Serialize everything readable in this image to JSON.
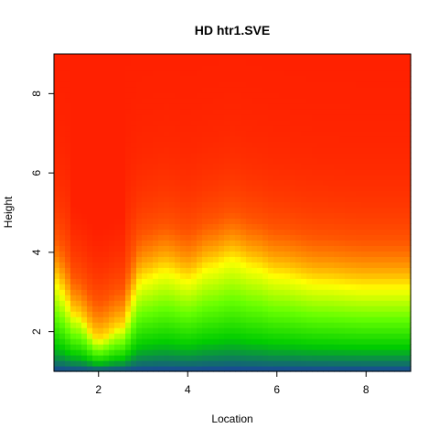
{
  "chart_data": {
    "type": "heatmap",
    "title": "HD htr1.SVE",
    "xlabel": "Location",
    "ylabel": "Height",
    "xlim": [
      1,
      9
    ],
    "ylim": [
      1,
      9
    ],
    "x_ticks": [
      2,
      4,
      6,
      8
    ],
    "y_ticks": [
      2,
      4,
      6,
      8
    ],
    "x_tick_labels": [
      "2",
      "4",
      "6",
      "8"
    ],
    "y_tick_labels": [
      "2",
      "4",
      "6",
      "8"
    ],
    "grid": false,
    "colorscale": [
      "#1a3fa0",
      "#00cc00",
      "#66ff00",
      "#ffff00",
      "#ffaa00",
      "#ff5500",
      "#ff2000"
    ],
    "contour_color_level_threshold": {
      "description_points_location": [
        1.0,
        1.5,
        2.0,
        2.5,
        3.0,
        3.5,
        4.0,
        4.5,
        5.0,
        5.5,
        6.0,
        7.0,
        8.0,
        9.0
      ],
      "yellow_band_height": [
        3.2,
        2.4,
        1.8,
        2.1,
        3.3,
        3.5,
        3.3,
        3.6,
        3.8,
        3.6,
        3.4,
        3.2,
        3.1,
        3.1
      ]
    }
  }
}
